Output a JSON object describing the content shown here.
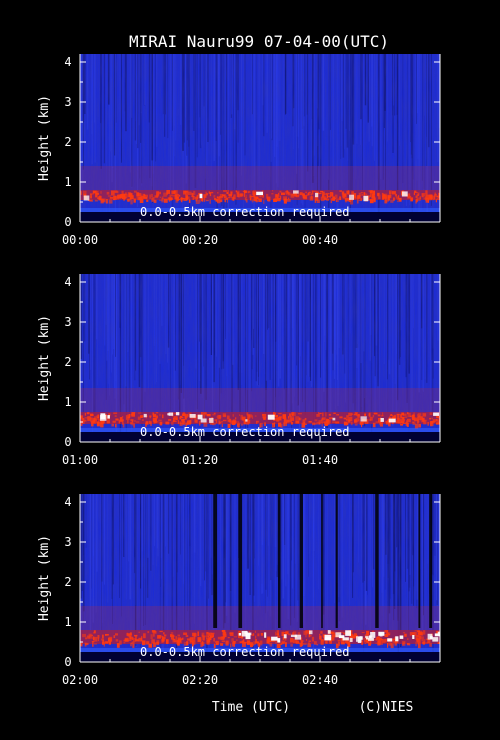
{
  "header": {
    "title": "MIRAI Nauru99 07-04-00(UTC)"
  },
  "footer": {
    "xlabel": "Time (UTC)",
    "credit": "(C)NIES"
  },
  "colors": {
    "background": "#000000",
    "axes": "#ffffff",
    "text": "#ffffff",
    "clear_sky": "#1a2ad8",
    "aerosol_layer": "#8a2a6a",
    "cloud_return": "#ff3a10",
    "strong_return": "#ffffff",
    "ground": "#000033"
  },
  "chart_data": [
    {
      "type": "heatmap",
      "ylabel": "Height (km)",
      "ylim": [
        0,
        4.2
      ],
      "yticks": [
        "0",
        "1",
        "2",
        "3",
        "4"
      ],
      "xticks": [
        "00:00",
        "00:20",
        "00:40"
      ],
      "xlim": [
        "00:00",
        "01:00"
      ],
      "annotation": "0.0-0.5km correction required",
      "cloud_base_km": 0.55,
      "cloud_top_km": 0.8
    },
    {
      "type": "heatmap",
      "ylabel": "Height (km)",
      "ylim": [
        0,
        4.2
      ],
      "yticks": [
        "0",
        "1",
        "2",
        "3",
        "4"
      ],
      "xticks": [
        "01:00",
        "01:20",
        "01:40"
      ],
      "xlim": [
        "01:00",
        "02:00"
      ],
      "annotation": "0.0-0.5km correction required",
      "cloud_base_km": 0.45,
      "cloud_top_km": 0.75
    },
    {
      "type": "heatmap",
      "ylabel": "Height (km)",
      "ylim": [
        0,
        4.2
      ],
      "yticks": [
        "0",
        "1",
        "2",
        "3",
        "4"
      ],
      "xticks": [
        "02:00",
        "02:20",
        "02:40"
      ],
      "xlim": [
        "02:00",
        "03:00"
      ],
      "annotation": "0.0-0.5km correction required",
      "cloud_base_km": 0.45,
      "cloud_top_km": 0.8
    }
  ]
}
